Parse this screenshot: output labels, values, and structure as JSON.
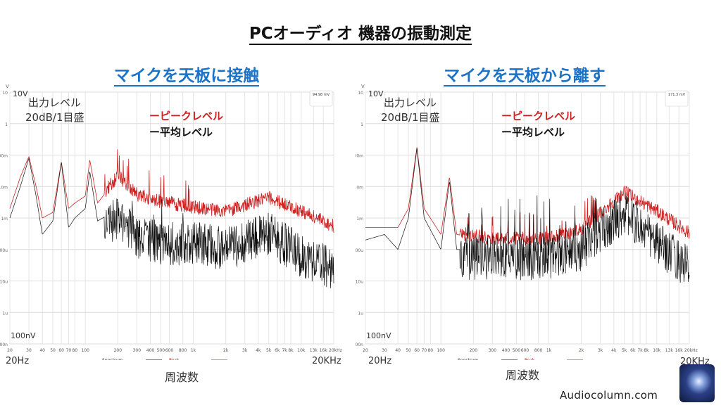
{
  "title": "PCオーディオ 機器の振動測定",
  "colors": {
    "peak": "#cc2222",
    "average": "#111111",
    "subtitle": "#1a73c8",
    "grid": "#e2e2e2"
  },
  "annotations": {
    "y_unit": "V",
    "top_label": "10V",
    "bottom_label": "100nV",
    "output_level": "出力レベル",
    "scale": "20dB/1目盛",
    "legend_peak": "ーピークレベル",
    "legend_avg": "ー平均レベル",
    "x_min_label": "20Hz",
    "x_max_label": "20KHz",
    "x_axis_title": "周波数",
    "legend_spectrum": "Spectrum",
    "legend_peak_small": "Peak"
  },
  "site": "Audiocolumn.com",
  "logo": "Audiocolumn logo",
  "chart_data": [
    {
      "type": "line",
      "title": "マイクを天板に接触",
      "info_value": "94.98 mV",
      "xscale": "log",
      "yscale": "log",
      "xlim": [
        20,
        20000
      ],
      "ylim": [
        1e-07,
        10
      ],
      "grid": true,
      "legend": "bottom",
      "x_ticks": [
        "20",
        "30",
        "40",
        "50",
        "60",
        "70",
        "80",
        "100",
        "200",
        "300",
        "400",
        "500",
        "600",
        "800",
        "1k",
        "2k",
        "3k",
        "4k",
        "5k",
        "6k",
        "7k",
        "8k",
        "10k",
        "13k",
        "16k",
        "20kHz"
      ],
      "y_ticks": [
        "10",
        "1",
        "100m",
        "10m",
        "1m",
        "100u",
        "10u",
        "1u",
        "100n"
      ],
      "series": [
        {
          "name": "Peak",
          "points": [
            [
              20,
              0.002
            ],
            [
              25,
              0.02
            ],
            [
              30,
              0.09
            ],
            [
              35,
              0.01
            ],
            [
              40,
              0.001
            ],
            [
              50,
              0.0015
            ],
            [
              60,
              0.06
            ],
            [
              70,
              0.002
            ],
            [
              80,
              0.003
            ],
            [
              100,
              0.005
            ],
            [
              110,
              0.07
            ],
            [
              130,
              0.003
            ],
            [
              200,
              0.02
            ],
            [
              300,
              0.005
            ],
            [
              500,
              0.003
            ],
            [
              1000,
              0.002
            ],
            [
              2000,
              0.0015
            ],
            [
              5000,
              0.004
            ],
            [
              10000,
              0.0015
            ],
            [
              20000,
              0.0005
            ]
          ]
        },
        {
          "name": "Spectrum",
          "points": [
            [
              20,
              0.001
            ],
            [
              25,
              0.01
            ],
            [
              30,
              0.08
            ],
            [
              35,
              0.005
            ],
            [
              40,
              0.0003
            ],
            [
              50,
              0.0008
            ],
            [
              60,
              0.06
            ],
            [
              70,
              0.0005
            ],
            [
              80,
              0.001
            ],
            [
              100,
              0.002
            ],
            [
              110,
              0.03
            ],
            [
              130,
              0.0008
            ],
            [
              200,
              0.002
            ],
            [
              300,
              0.0005
            ],
            [
              500,
              0.0003
            ],
            [
              1000,
              0.0003
            ],
            [
              2000,
              0.0002
            ],
            [
              5000,
              0.0006
            ],
            [
              10000,
              0.00012
            ],
            [
              20000,
              5e-05
            ]
          ]
        }
      ]
    },
    {
      "type": "line",
      "title": "マイクを天板から離す",
      "info_value": "171.3 mV",
      "xscale": "log",
      "yscale": "log",
      "xlim": [
        20,
        20000
      ],
      "ylim": [
        1e-07,
        10
      ],
      "grid": true,
      "legend": "bottom",
      "x_ticks": [
        "20",
        "30",
        "40",
        "50",
        "60",
        "70",
        "80",
        "100",
        "200",
        "300",
        "400",
        "500",
        "600",
        "800",
        "1k",
        "2k",
        "3k",
        "4k",
        "5k",
        "6k",
        "7k",
        "8k",
        "10k",
        "13k",
        "16k",
        "20kHz"
      ],
      "y_ticks": [
        "10",
        "1",
        "100m",
        "10m",
        "1m",
        "100u",
        "10u",
        "1u",
        "100n"
      ],
      "series": [
        {
          "name": "Peak",
          "points": [
            [
              20,
              0.0005
            ],
            [
              40,
              0.0005
            ],
            [
              50,
              0.002
            ],
            [
              60,
              0.18
            ],
            [
              70,
              0.002
            ],
            [
              100,
              0.0003
            ],
            [
              120,
              0.02
            ],
            [
              140,
              0.0003
            ],
            [
              300,
              0.0002
            ],
            [
              1000,
              0.0002
            ],
            [
              2000,
              0.0004
            ],
            [
              5000,
              0.006
            ],
            [
              10000,
              0.0015
            ],
            [
              20000,
              0.0003
            ]
          ]
        },
        {
          "name": "Spectrum",
          "points": [
            [
              20,
              0.0002
            ],
            [
              30,
              0.0003
            ],
            [
              40,
              0.0001
            ],
            [
              50,
              0.001
            ],
            [
              60,
              0.17
            ],
            [
              70,
              0.001
            ],
            [
              100,
              0.0001
            ],
            [
              120,
              0.015
            ],
            [
              140,
              0.0001
            ],
            [
              300,
              0.0001
            ],
            [
              1000,
              0.0001
            ],
            [
              2000,
              0.0002
            ],
            [
              5000,
              0.003
            ],
            [
              10000,
              0.0003
            ],
            [
              20000,
              5e-05
            ]
          ]
        }
      ]
    }
  ]
}
